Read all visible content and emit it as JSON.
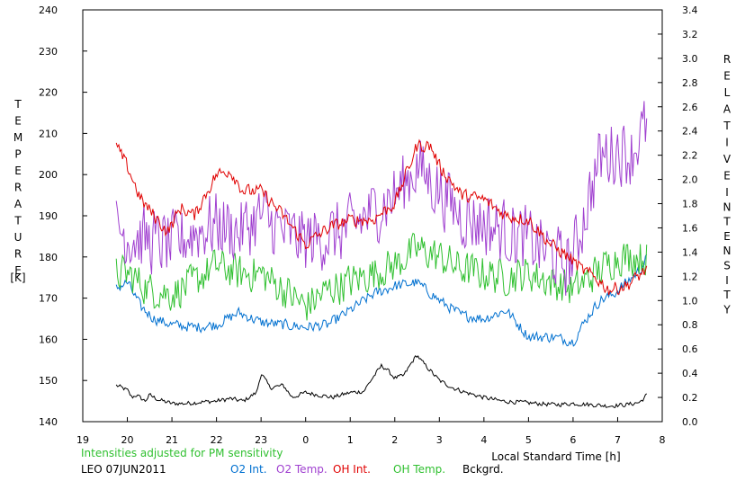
{
  "chart_data": {
    "type": "line",
    "left_axis": {
      "label_letters": [
        "T",
        "E",
        "M",
        "P",
        "E",
        "R",
        "A",
        "T",
        "U",
        "R",
        "E"
      ],
      "unit": "[K]",
      "ylim": [
        140,
        240
      ],
      "ticks": [
        "140",
        "150",
        "160",
        "170",
        "180",
        "190",
        "200",
        "210",
        "220",
        "230",
        "240"
      ]
    },
    "right_axis": {
      "label_word1": [
        "R",
        "E",
        "L",
        "A",
        "T",
        "I",
        "V",
        "E"
      ],
      "label_word2": [
        "I",
        "N",
        "T",
        "E",
        "N",
        "S",
        "I",
        "T",
        "Y"
      ],
      "ylim": [
        0.0,
        3.4
      ],
      "ticks": [
        "0.0",
        "0.2",
        "0.4",
        "0.6",
        "0.8",
        "1.0",
        "1.2",
        "1.4",
        "1.6",
        "1.8",
        "2.0",
        "2.2",
        "2.4",
        "2.6",
        "2.8",
        "3.0",
        "3.2",
        "3.4"
      ]
    },
    "x_axis": {
      "label": "Local Standard Time [h]",
      "xlim": [
        19,
        32
      ],
      "ticks": [
        "19",
        "20",
        "21",
        "22",
        "23",
        "0",
        "1",
        "2",
        "3",
        "4",
        "5",
        "6",
        "7",
        "8"
      ]
    },
    "note": "Intensities adjusted for PM sensitivity",
    "station": "LEO 07JUN2011",
    "series": [
      {
        "name": "O2 Int.",
        "color": "#0070d0",
        "axis": "right",
        "x": [
          19.75,
          20.0,
          20.3,
          20.6,
          21.0,
          21.5,
          22.0,
          22.5,
          23.0,
          23.5,
          24.0,
          24.5,
          25.0,
          25.5,
          26.0,
          26.5,
          27.0,
          27.5,
          28.0,
          28.5,
          29.0,
          29.5,
          29.8,
          30.0,
          30.3,
          30.6,
          30.9,
          31.2,
          31.5,
          31.65
        ],
        "values": [
          1.1,
          1.15,
          0.95,
          0.85,
          0.8,
          0.78,
          0.8,
          0.9,
          0.82,
          0.8,
          0.78,
          0.8,
          0.92,
          1.05,
          1.12,
          1.15,
          1.0,
          0.88,
          0.85,
          0.92,
          0.7,
          0.7,
          0.68,
          0.66,
          0.85,
          1.0,
          1.05,
          1.15,
          1.25,
          1.35
        ],
        "noise": 0.05
      },
      {
        "name": "O2 Temp.",
        "color": "#a040d0",
        "axis": "left",
        "x": [
          19.75,
          20.0,
          20.5,
          21.0,
          21.5,
          22.0,
          22.5,
          23.0,
          23.5,
          24.0,
          24.5,
          25.0,
          25.5,
          26.0,
          26.5,
          27.0,
          27.5,
          28.0,
          28.5,
          29.0,
          29.5,
          29.8,
          30.0,
          30.3,
          30.6,
          31.0,
          31.3,
          31.65
        ],
        "values": [
          188,
          185,
          184,
          183,
          186,
          188,
          186,
          190,
          186,
          184,
          185,
          187,
          191,
          195,
          202,
          196,
          190,
          188,
          186,
          184,
          181,
          178,
          180,
          192,
          204,
          206,
          205,
          212
        ],
        "noise": 9
      },
      {
        "name": "OH Int.",
        "color": "#e00000",
        "axis": "left",
        "x": [
          19.75,
          20.0,
          20.3,
          20.6,
          20.9,
          21.2,
          21.5,
          22.0,
          22.3,
          22.6,
          23.0,
          23.5,
          24.0,
          24.5,
          25.0,
          25.5,
          26.0,
          26.5,
          26.8,
          27.0,
          27.5,
          28.0,
          28.5,
          29.0,
          29.5,
          29.9,
          30.2,
          30.5,
          30.8,
          31.2,
          31.65
        ],
        "values": [
          207,
          202,
          194,
          190,
          186,
          192,
          190,
          200,
          201,
          196,
          196,
          190,
          183,
          187,
          189,
          189,
          193,
          207,
          207,
          202,
          195,
          194,
          190,
          189,
          183,
          180,
          177,
          175,
          172,
          173,
          177
        ],
        "noise": 1.8
      },
      {
        "name": "OH Temp.",
        "color": "#30c030",
        "axis": "left",
        "x": [
          19.75,
          20.0,
          20.5,
          21.0,
          21.5,
          22.0,
          22.5,
          23.0,
          23.5,
          24.0,
          24.5,
          25.0,
          25.5,
          26.0,
          26.5,
          27.0,
          27.5,
          28.0,
          28.5,
          29.0,
          29.5,
          30.0,
          30.5,
          31.0,
          31.65
        ],
        "values": [
          176,
          176,
          172,
          171,
          174,
          178,
          176,
          176,
          172,
          168,
          172,
          174,
          176,
          178,
          182,
          180,
          177,
          176,
          175,
          176,
          174,
          172,
          176,
          180,
          180
        ],
        "noise": 5
      },
      {
        "name": "Bckgrd.",
        "color": "#000000",
        "axis": "right",
        "x": [
          19.75,
          20.0,
          20.1,
          20.2,
          20.4,
          20.5,
          20.7,
          21.0,
          21.3,
          21.6,
          22.0,
          22.3,
          22.6,
          22.9,
          23.0,
          23.2,
          23.5,
          23.7,
          24.0,
          24.3,
          24.6,
          25.0,
          25.3,
          25.5,
          25.7,
          25.8,
          25.9,
          26.0,
          26.2,
          26.4,
          26.5,
          26.6,
          26.8,
          27.0,
          27.3,
          27.6,
          28.0,
          28.4,
          28.8,
          29.2,
          29.6,
          30.0,
          30.4,
          30.8,
          31.2,
          31.5,
          31.65
        ],
        "values": [
          0.3,
          0.26,
          0.2,
          0.22,
          0.17,
          0.22,
          0.18,
          0.15,
          0.15,
          0.16,
          0.17,
          0.19,
          0.17,
          0.24,
          0.4,
          0.28,
          0.3,
          0.2,
          0.24,
          0.22,
          0.2,
          0.24,
          0.25,
          0.36,
          0.46,
          0.44,
          0.4,
          0.36,
          0.38,
          0.5,
          0.55,
          0.5,
          0.42,
          0.34,
          0.28,
          0.24,
          0.2,
          0.17,
          0.16,
          0.15,
          0.14,
          0.15,
          0.14,
          0.13,
          0.14,
          0.16,
          0.22
        ],
        "noise": 0.02
      }
    ]
  }
}
